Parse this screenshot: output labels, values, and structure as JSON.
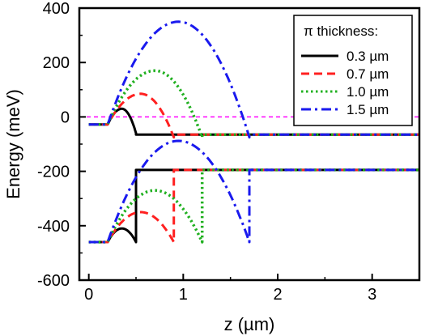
{
  "chart_data": {
    "type": "line",
    "xlabel": "z (µm)",
    "ylabel": "Energy (meV)",
    "xlim": [
      -0.1,
      3.5
    ],
    "ylim": [
      -600,
      400
    ],
    "xticks": [
      0,
      1,
      2,
      3
    ],
    "yticks": [
      -600,
      -400,
      -200,
      0,
      200,
      400
    ],
    "xtick_labels": [
      "0",
      "1",
      "2",
      "3"
    ],
    "ytick_labels": [
      "-600",
      "-400",
      "-200",
      "0",
      "200",
      "400"
    ],
    "grid": false,
    "legend_title": "π thickness:",
    "legend_position": "top-right",
    "reference_line": {
      "y": 0,
      "color": "#ff00ff",
      "style": "dashed"
    },
    "series": [
      {
        "name": "0.3 µm",
        "color": "#000000",
        "style": "solid",
        "pi_start": 0.2,
        "pi_end": 0.5,
        "cb_peak": 30,
        "cb_level": -65,
        "cb_offset": -28,
        "vb_peak": -410,
        "vb_level": -195,
        "vb_offset": -460
      },
      {
        "name": "0.7 µm",
        "color": "#ff2020",
        "style": "dashed",
        "pi_start": 0.2,
        "pi_end": 0.9,
        "cb_peak": 85,
        "cb_level": -65,
        "cb_offset": -28,
        "vb_peak": -350,
        "vb_level": -195,
        "vb_offset": -460
      },
      {
        "name": "1.0 µm",
        "color": "#20b020",
        "style": "dotted",
        "pi_start": 0.2,
        "pi_end": 1.2,
        "cb_peak": 170,
        "cb_level": -65,
        "cb_offset": -28,
        "vb_peak": -270,
        "vb_level": -195,
        "vb_offset": -460
      },
      {
        "name": "1.5 µm",
        "color": "#1a1aee",
        "style": "dashdot",
        "pi_start": 0.2,
        "pi_end": 1.7,
        "cb_peak": 350,
        "cb_level": -65,
        "cb_offset": -28,
        "vb_peak": -88,
        "vb_level": -195,
        "vb_offset": -460
      }
    ]
  }
}
